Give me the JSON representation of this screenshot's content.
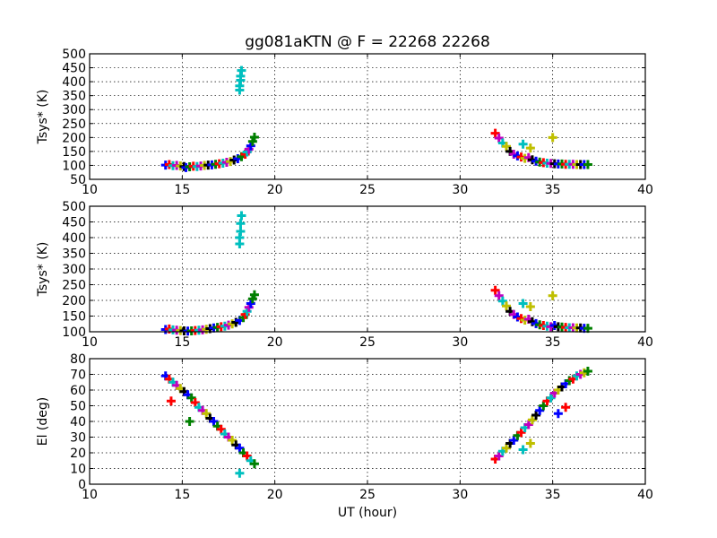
{
  "chart_data": {
    "type": "scatter",
    "title": "gg081aKTN @ F = 22268 22268",
    "xlabel": "UT (hour)",
    "xlim": [
      10,
      40
    ],
    "xticks": [
      10,
      15,
      20,
      25,
      30,
      35,
      40
    ],
    "grid": true,
    "marker": "plus",
    "colors": {
      "blue": "#0000ff",
      "green": "#007f00",
      "red": "#ff0000",
      "cyan": "#00bfbf",
      "magenta": "#bf00bf",
      "yellow": "#bfbf00",
      "black": "#000000"
    },
    "panels": [
      {
        "name": "tsys-upper",
        "ylabel": "Tsys* (K)",
        "ylim": [
          50,
          500
        ],
        "yticks": [
          50,
          100,
          150,
          200,
          250,
          300,
          350,
          400,
          450,
          500
        ],
        "points": [
          [
            14.1,
            101,
            "blue"
          ],
          [
            14.3,
            103,
            "red"
          ],
          [
            14.5,
            99,
            "cyan"
          ],
          [
            14.7,
            100,
            "magenta"
          ],
          [
            14.9,
            98,
            "yellow"
          ],
          [
            15.1,
            96,
            "black"
          ],
          [
            15.2,
            92,
            "blue"
          ],
          [
            15.4,
            95,
            "green"
          ],
          [
            15.6,
            97,
            "red"
          ],
          [
            15.8,
            96,
            "cyan"
          ],
          [
            16.0,
            98,
            "magenta"
          ],
          [
            16.2,
            100,
            "yellow"
          ],
          [
            16.4,
            101,
            "black"
          ],
          [
            16.6,
            102,
            "blue"
          ],
          [
            16.8,
            104,
            "green"
          ],
          [
            17.0,
            106,
            "red"
          ],
          [
            17.2,
            108,
            "cyan"
          ],
          [
            17.4,
            111,
            "magenta"
          ],
          [
            17.6,
            114,
            "yellow"
          ],
          [
            17.8,
            119,
            "black"
          ],
          [
            18.0,
            124,
            "blue"
          ],
          [
            18.2,
            131,
            "green"
          ],
          [
            18.4,
            140,
            "red"
          ],
          [
            18.5,
            148,
            "cyan"
          ],
          [
            18.6,
            158,
            "magenta"
          ],
          [
            18.7,
            170,
            "blue"
          ],
          [
            18.8,
            186,
            "green"
          ],
          [
            18.9,
            201,
            "green"
          ],
          [
            18.1,
            370,
            "cyan"
          ],
          [
            18.1,
            385,
            "cyan"
          ],
          [
            18.15,
            405,
            "cyan"
          ],
          [
            18.15,
            420,
            "cyan"
          ],
          [
            18.2,
            440,
            "cyan"
          ],
          [
            31.9,
            215,
            "red"
          ],
          [
            32.1,
            198,
            "magenta"
          ],
          [
            32.3,
            180,
            "cyan"
          ],
          [
            32.5,
            168,
            "yellow"
          ],
          [
            32.7,
            150,
            "black"
          ],
          [
            32.9,
            140,
            "magenta"
          ],
          [
            33.1,
            134,
            "blue"
          ],
          [
            33.3,
            130,
            "red"
          ],
          [
            33.4,
            176,
            "cyan"
          ],
          [
            33.5,
            125,
            "yellow"
          ],
          [
            33.7,
            128,
            "magenta"
          ],
          [
            33.8,
            162,
            "yellow"
          ],
          [
            33.9,
            120,
            "black"
          ],
          [
            34.1,
            115,
            "blue"
          ],
          [
            34.3,
            112,
            "green"
          ],
          [
            34.5,
            110,
            "red"
          ],
          [
            34.7,
            108,
            "cyan"
          ],
          [
            34.9,
            107,
            "magenta"
          ],
          [
            35.0,
            200,
            "yellow"
          ],
          [
            35.1,
            106,
            "black"
          ],
          [
            35.3,
            105,
            "blue"
          ],
          [
            35.5,
            105,
            "green"
          ],
          [
            35.7,
            104,
            "red"
          ],
          [
            35.9,
            104,
            "cyan"
          ],
          [
            36.1,
            104,
            "magenta"
          ],
          [
            36.3,
            103,
            "yellow"
          ],
          [
            36.5,
            103,
            "black"
          ],
          [
            36.7,
            103,
            "blue"
          ],
          [
            36.9,
            103,
            "green"
          ]
        ]
      },
      {
        "name": "tsys-lower",
        "ylabel": "Tsys* (K)",
        "ylim": [
          100,
          500
        ],
        "yticks": [
          100,
          150,
          200,
          250,
          300,
          350,
          400,
          450,
          500
        ],
        "points": [
          [
            14.1,
            107,
            "blue"
          ],
          [
            14.3,
            109,
            "red"
          ],
          [
            14.5,
            106,
            "cyan"
          ],
          [
            14.7,
            105,
            "magenta"
          ],
          [
            14.9,
            104,
            "yellow"
          ],
          [
            15.1,
            103,
            "black"
          ],
          [
            15.3,
            102,
            "blue"
          ],
          [
            15.5,
            103,
            "green"
          ],
          [
            15.7,
            104,
            "red"
          ],
          [
            15.9,
            105,
            "cyan"
          ],
          [
            16.1,
            106,
            "magenta"
          ],
          [
            16.3,
            108,
            "yellow"
          ],
          [
            16.5,
            110,
            "black"
          ],
          [
            16.7,
            112,
            "blue"
          ],
          [
            16.9,
            114,
            "green"
          ],
          [
            17.1,
            116,
            "red"
          ],
          [
            17.3,
            118,
            "cyan"
          ],
          [
            17.5,
            121,
            "magenta"
          ],
          [
            17.7,
            125,
            "yellow"
          ],
          [
            17.9,
            130,
            "black"
          ],
          [
            18.1,
            136,
            "blue"
          ],
          [
            18.3,
            145,
            "green"
          ],
          [
            18.4,
            155,
            "red"
          ],
          [
            18.5,
            165,
            "cyan"
          ],
          [
            18.6,
            178,
            "magenta"
          ],
          [
            18.7,
            190,
            "blue"
          ],
          [
            18.8,
            205,
            "green"
          ],
          [
            18.9,
            218,
            "green"
          ],
          [
            18.1,
            380,
            "cyan"
          ],
          [
            18.1,
            400,
            "cyan"
          ],
          [
            18.15,
            420,
            "cyan"
          ],
          [
            18.15,
            445,
            "cyan"
          ],
          [
            18.2,
            470,
            "cyan"
          ],
          [
            31.9,
            232,
            "red"
          ],
          [
            32.1,
            215,
            "magenta"
          ],
          [
            32.3,
            198,
            "cyan"
          ],
          [
            32.5,
            182,
            "yellow"
          ],
          [
            32.7,
            165,
            "black"
          ],
          [
            32.9,
            155,
            "magenta"
          ],
          [
            33.1,
            147,
            "blue"
          ],
          [
            33.3,
            142,
            "red"
          ],
          [
            33.4,
            190,
            "cyan"
          ],
          [
            33.5,
            137,
            "yellow"
          ],
          [
            33.7,
            140,
            "magenta"
          ],
          [
            33.8,
            180,
            "yellow"
          ],
          [
            33.9,
            132,
            "black"
          ],
          [
            34.1,
            126,
            "blue"
          ],
          [
            34.3,
            122,
            "green"
          ],
          [
            34.5,
            120,
            "red"
          ],
          [
            34.7,
            118,
            "cyan"
          ],
          [
            34.9,
            116,
            "magenta"
          ],
          [
            35.0,
            215,
            "yellow"
          ],
          [
            35.1,
            120,
            "blue"
          ],
          [
            35.3,
            116,
            "black"
          ],
          [
            35.5,
            115,
            "green"
          ],
          [
            35.7,
            114,
            "red"
          ],
          [
            35.9,
            113,
            "cyan"
          ],
          [
            36.1,
            113,
            "magenta"
          ],
          [
            36.3,
            112,
            "yellow"
          ],
          [
            36.5,
            112,
            "black"
          ],
          [
            36.7,
            111,
            "blue"
          ],
          [
            36.9,
            111,
            "green"
          ]
        ]
      },
      {
        "name": "elevation",
        "ylabel": "El (deg)",
        "ylim": [
          0,
          80
        ],
        "yticks": [
          0,
          10,
          20,
          30,
          40,
          50,
          60,
          70,
          80
        ],
        "points": [
          [
            14.1,
            69,
            "blue"
          ],
          [
            14.3,
            67,
            "red"
          ],
          [
            14.5,
            65,
            "cyan"
          ],
          [
            14.7,
            63,
            "magenta"
          ],
          [
            14.9,
            61,
            "yellow"
          ],
          [
            15.1,
            59,
            "black"
          ],
          [
            15.3,
            57,
            "blue"
          ],
          [
            15.5,
            55,
            "green"
          ],
          [
            15.7,
            52,
            "red"
          ],
          [
            15.9,
            49,
            "cyan"
          ],
          [
            16.1,
            47,
            "magenta"
          ],
          [
            16.3,
            45,
            "yellow"
          ],
          [
            16.5,
            42,
            "black"
          ],
          [
            16.7,
            40,
            "blue"
          ],
          [
            16.9,
            37,
            "green"
          ],
          [
            17.1,
            35,
            "red"
          ],
          [
            17.3,
            32,
            "cyan"
          ],
          [
            17.5,
            30,
            "magenta"
          ],
          [
            17.7,
            28,
            "yellow"
          ],
          [
            17.9,
            25,
            "black"
          ],
          [
            18.1,
            23,
            "blue"
          ],
          [
            18.3,
            20,
            "green"
          ],
          [
            18.5,
            18,
            "red"
          ],
          [
            18.7,
            15,
            "cyan"
          ],
          [
            18.9,
            13,
            "green"
          ],
          [
            14.4,
            53,
            "red"
          ],
          [
            15.4,
            40,
            "green"
          ],
          [
            18.1,
            7,
            "cyan"
          ],
          [
            31.9,
            16,
            "red"
          ],
          [
            32.1,
            18,
            "magenta"
          ],
          [
            32.3,
            21,
            "cyan"
          ],
          [
            32.5,
            23,
            "yellow"
          ],
          [
            32.7,
            26,
            "black"
          ],
          [
            32.9,
            28,
            "blue"
          ],
          [
            33.1,
            31,
            "green"
          ],
          [
            33.3,
            33,
            "red"
          ],
          [
            33.5,
            36,
            "cyan"
          ],
          [
            33.7,
            38,
            "magenta"
          ],
          [
            33.9,
            41,
            "yellow"
          ],
          [
            34.1,
            44,
            "black"
          ],
          [
            34.3,
            47,
            "blue"
          ],
          [
            34.5,
            50,
            "green"
          ],
          [
            34.7,
            53,
            "red"
          ],
          [
            34.9,
            55,
            "cyan"
          ],
          [
            35.1,
            58,
            "magenta"
          ],
          [
            35.3,
            60,
            "yellow"
          ],
          [
            35.5,
            62,
            "black"
          ],
          [
            35.7,
            64,
            "blue"
          ],
          [
            35.9,
            66,
            "green"
          ],
          [
            36.1,
            67,
            "red"
          ],
          [
            36.3,
            69,
            "cyan"
          ],
          [
            36.5,
            70,
            "magenta"
          ],
          [
            36.7,
            71,
            "yellow"
          ],
          [
            36.9,
            72,
            "green"
          ],
          [
            33.4,
            22,
            "cyan"
          ],
          [
            33.8,
            26,
            "yellow"
          ],
          [
            35.3,
            45,
            "blue"
          ],
          [
            35.7,
            49,
            "red"
          ]
        ]
      }
    ]
  }
}
